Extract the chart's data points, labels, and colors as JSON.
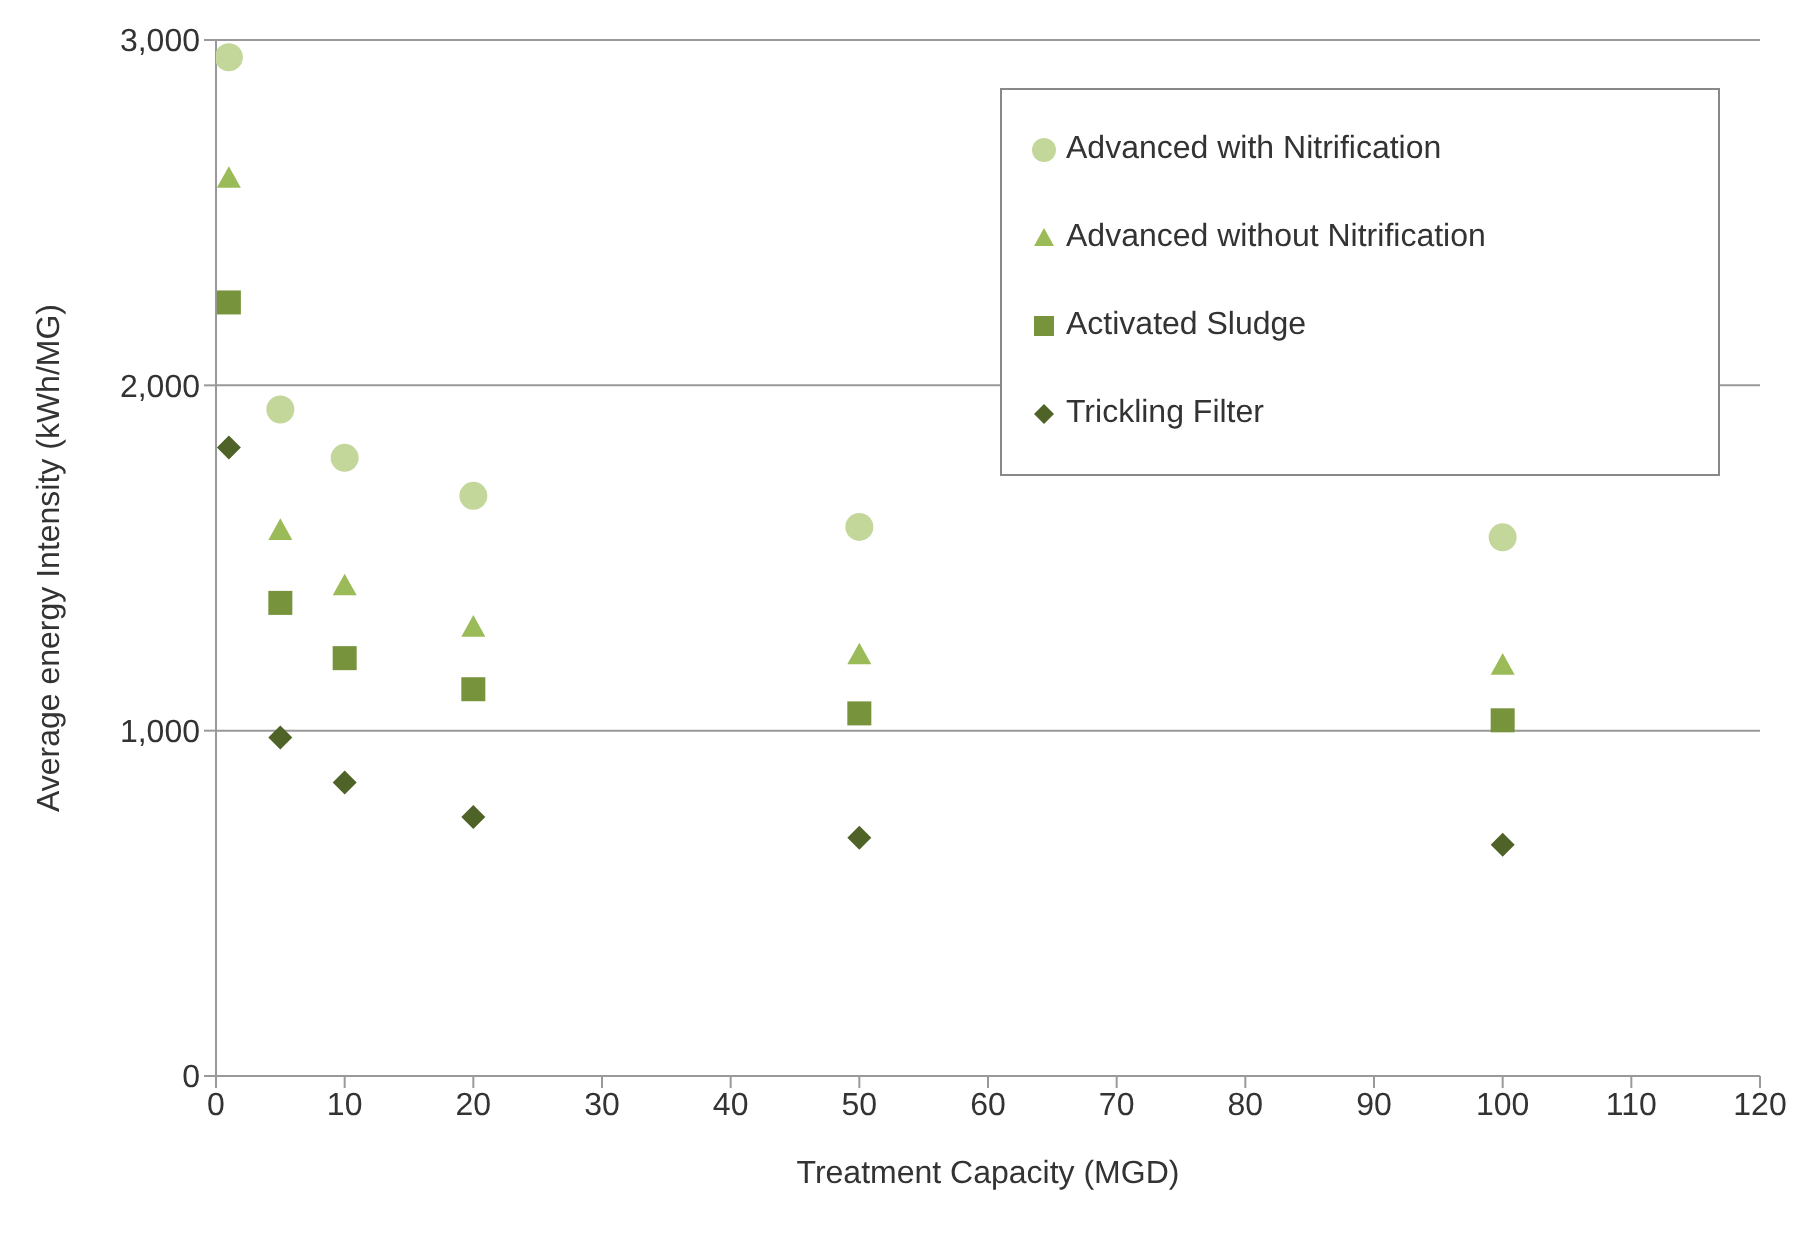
{
  "chart_data": {
    "type": "scatter",
    "xlabel": "Treatment  Capacity (MGD)",
    "ylabel": "Average energy Intensity (kWh/MG)",
    "x": [
      1,
      5,
      10,
      20,
      50,
      100
    ],
    "series": [
      {
        "name": "Advanced with Nitrification",
        "color": "#c4d79b",
        "marker": "circle",
        "values": [
          2950,
          1930,
          1790,
          1680,
          1590,
          1560
        ]
      },
      {
        "name": "Advanced without Nitrification",
        "color": "#9bbb59",
        "marker": "triangle",
        "values": [
          2600,
          1580,
          1420,
          1300,
          1220,
          1190
        ]
      },
      {
        "name": "Activated Sludge",
        "color": "#77933c",
        "marker": "square",
        "values": [
          2240,
          1370,
          1210,
          1120,
          1050,
          1030
        ]
      },
      {
        "name": "Trickling Filter",
        "color": "#4f6228",
        "marker": "diamond",
        "values": [
          1820,
          980,
          850,
          750,
          690,
          670
        ]
      }
    ],
    "xlim": [
      0,
      120
    ],
    "xticks": [
      0,
      10,
      20,
      30,
      40,
      50,
      60,
      70,
      80,
      90,
      100,
      110,
      120
    ],
    "ylim": [
      0,
      3000
    ],
    "yticks": [
      0,
      {
        "value": 1000,
        "label": "1,000"
      },
      {
        "value": 2000,
        "label": "2,000"
      },
      {
        "value": 3000,
        "label": "3,000"
      }
    ],
    "grid": "y",
    "legend": "top right"
  }
}
